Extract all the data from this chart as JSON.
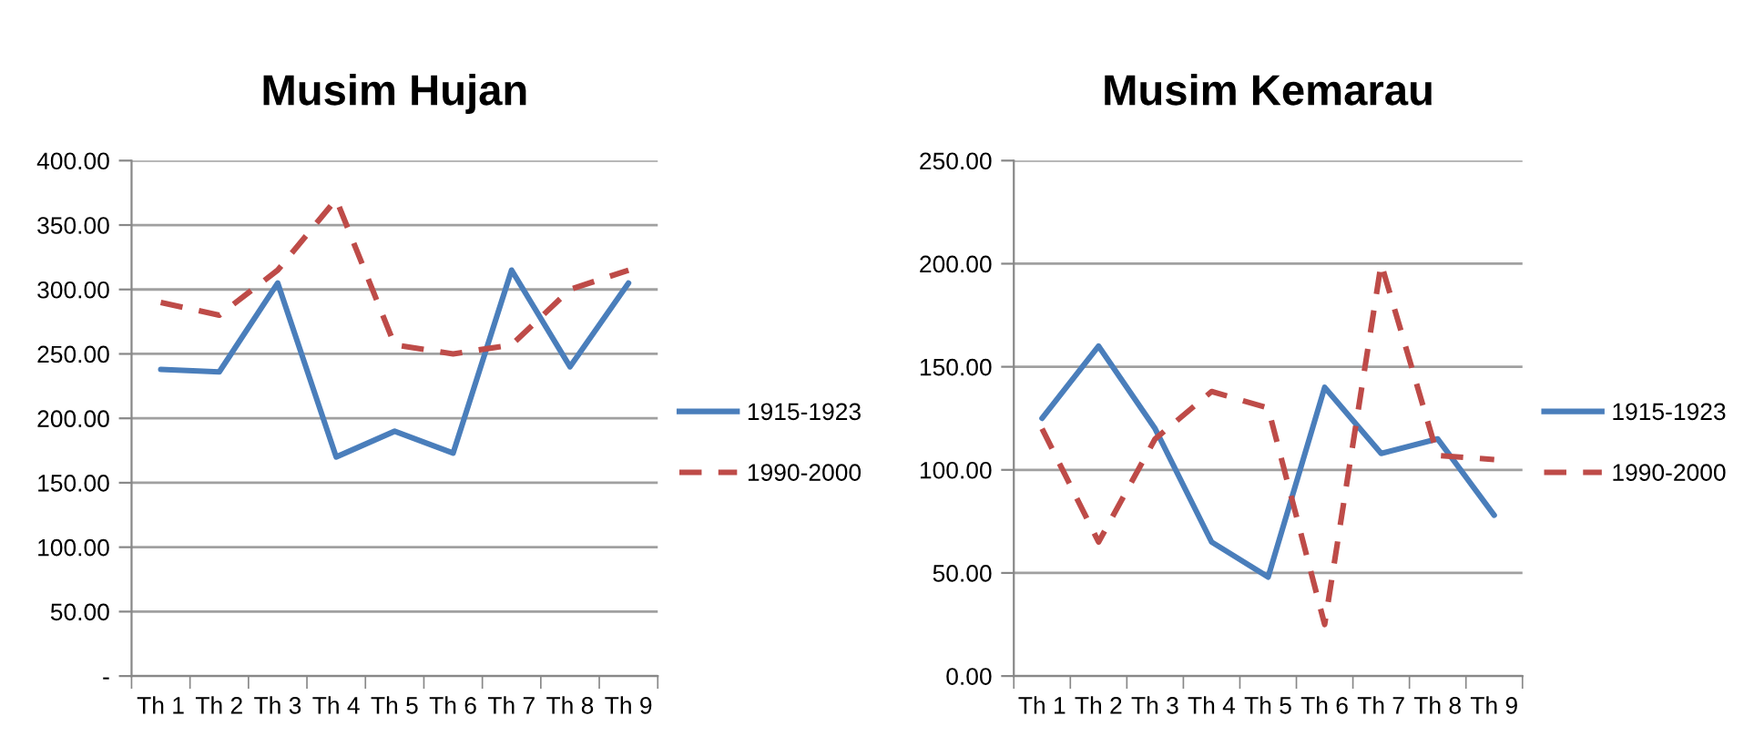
{
  "chart_data": [
    {
      "type": "line",
      "title": "Musim Hujan",
      "categories": [
        "Th 1",
        "Th 2",
        "Th 3",
        "Th 4",
        "Th 5",
        "Th 6",
        "Th 7",
        "Th 8",
        "Th 9"
      ],
      "series": [
        {
          "name": "1915-1923",
          "color": "#4a7ebb",
          "line_style": "solid",
          "values": [
            238,
            236,
            305,
            170,
            190,
            173,
            315,
            240,
            305
          ]
        },
        {
          "name": "1990-2000",
          "color": "#be4b48",
          "line_style": "dashed",
          "values": [
            290,
            280,
            315,
            370,
            257,
            250,
            257,
            300,
            315
          ]
        }
      ],
      "ylim": [
        0,
        400
      ],
      "yticks": [
        {
          "value": 0,
          "label": "-"
        },
        {
          "value": 50,
          "label": "50.00"
        },
        {
          "value": 100,
          "label": "100.00"
        },
        {
          "value": 150,
          "label": "150.00"
        },
        {
          "value": 200,
          "label": "200.00"
        },
        {
          "value": 250,
          "label": "250.00"
        },
        {
          "value": 300,
          "label": "300.00"
        },
        {
          "value": 350,
          "label": "350.00"
        },
        {
          "value": 400,
          "label": "400.00"
        }
      ],
      "grid": "y",
      "legend": "right",
      "marker": "none"
    },
    {
      "type": "line",
      "title": "Musim Kemarau",
      "categories": [
        "Th 1",
        "Th 2",
        "Th 3",
        "Th 4",
        "Th 5",
        "Th 6",
        "Th 7",
        "Th 8",
        "Th 9"
      ],
      "series": [
        {
          "name": "1915-1923",
          "color": "#4a7ebb",
          "line_style": "solid",
          "values": [
            125,
            160,
            120,
            65,
            48,
            140,
            108,
            115,
            78
          ]
        },
        {
          "name": "1990-2000",
          "color": "#be4b48",
          "line_style": "dashed",
          "values": [
            120,
            65,
            115,
            138,
            130,
            25,
            200,
            107,
            105
          ]
        }
      ],
      "ylim": [
        0,
        250
      ],
      "yticks": [
        {
          "value": 0,
          "label": "0.00"
        },
        {
          "value": 50,
          "label": "50.00"
        },
        {
          "value": 100,
          "label": "100.00"
        },
        {
          "value": 150,
          "label": "150.00"
        },
        {
          "value": 200,
          "label": "200.00"
        },
        {
          "value": 250,
          "label": "250.00"
        }
      ],
      "grid": "y",
      "legend": "right",
      "marker": "none"
    }
  ]
}
